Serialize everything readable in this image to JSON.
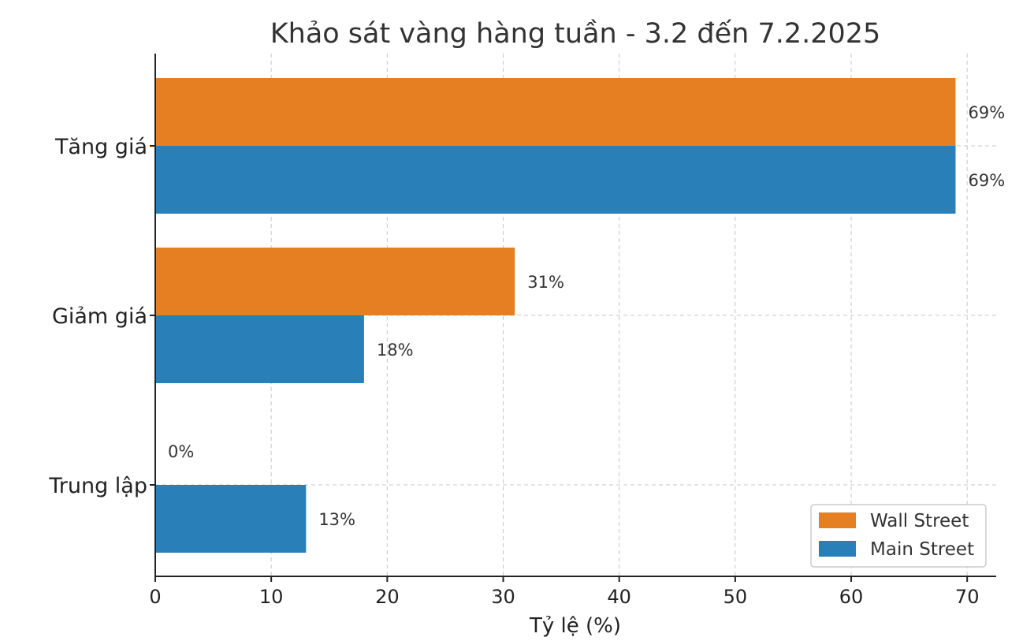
{
  "chart_data": {
    "type": "bar",
    "orientation": "horizontal",
    "title": "Khảo sát vàng hàng tuần - 3.2 đến 7.2.2025",
    "xlabel": "Tỷ lệ (%)",
    "ylabel": "",
    "categories": [
      "Tăng giá",
      "Giảm giá",
      "Trung lập"
    ],
    "series": [
      {
        "name": "Wall Street",
        "color": "#e67e22",
        "values": [
          69,
          31,
          0
        ],
        "labels": [
          "69%",
          "31%",
          "0%"
        ]
      },
      {
        "name": "Main Street",
        "color": "#2980b9",
        "values": [
          69,
          18,
          13
        ],
        "labels": [
          "69%",
          "18%",
          "13%"
        ]
      }
    ],
    "xlim": [
      0,
      72.5
    ],
    "xticks": [
      0,
      10,
      20,
      30,
      40,
      50,
      60,
      70
    ],
    "xtick_labels": [
      "0",
      "10",
      "20",
      "30",
      "40",
      "50",
      "60",
      "70"
    ],
    "grid": true,
    "legend_position": "bottom-right"
  }
}
